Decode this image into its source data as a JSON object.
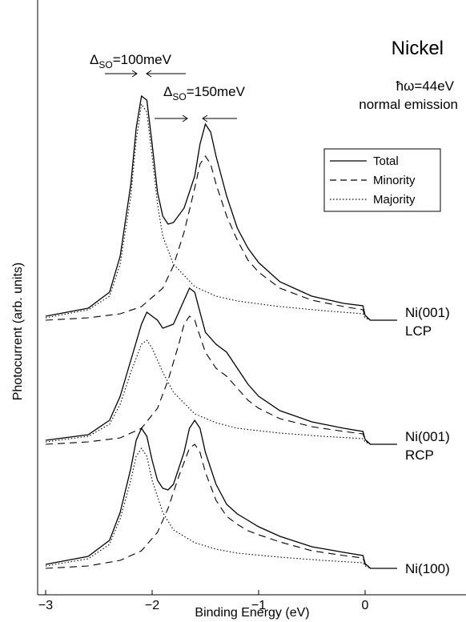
{
  "chart_data": {
    "type": "line",
    "title": "Nickel",
    "xlabel": "Binding Energy (eV)",
    "ylabel": "Photocurrent (arb. units)",
    "xlim": [
      -3,
      0.6
    ],
    "x_ticks": [
      "-3",
      "-2",
      "-1",
      "0"
    ],
    "y_ticks_shown": false,
    "grid": false,
    "legend_position": "top-right",
    "legend": [
      {
        "name": "Total",
        "style": "solid"
      },
      {
        "name": "Minority",
        "style": "dashed"
      },
      {
        "name": "Majority",
        "style": "dotted"
      }
    ],
    "annotations": {
      "photon_energy": "ħω=44eV",
      "emission": "normal emission",
      "so_splitting_left": {
        "symbol": "Δ",
        "sub": "SO",
        "value": "=100meV"
      },
      "so_splitting_right": {
        "symbol": "Δ",
        "sub": "SO",
        "value": "=150meV"
      }
    },
    "panels": [
      {
        "label_line1": "Ni(001)",
        "label_line2": "LCP",
        "baseline": 3.1,
        "series": [
          {
            "name": "Total",
            "style": "solid",
            "points": [
              [
                -3.0,
                0.05
              ],
              [
                -2.6,
                0.15
              ],
              [
                -2.4,
                0.35
              ],
              [
                -2.3,
                0.8
              ],
              [
                -2.2,
                1.7
              ],
              [
                -2.15,
                2.4
              ],
              [
                -2.1,
                2.8
              ],
              [
                -2.05,
                2.75
              ],
              [
                -2.0,
                2.2
              ],
              [
                -1.95,
                1.6
              ],
              [
                -1.9,
                1.3
              ],
              [
                -1.85,
                1.2
              ],
              [
                -1.8,
                1.22
              ],
              [
                -1.7,
                1.4
              ],
              [
                -1.6,
                1.8
              ],
              [
                -1.55,
                2.2
              ],
              [
                -1.5,
                2.45
              ],
              [
                -1.45,
                2.35
              ],
              [
                -1.4,
                2.05
              ],
              [
                -1.3,
                1.55
              ],
              [
                -1.2,
                1.15
              ],
              [
                -1.1,
                0.9
              ],
              [
                -1.0,
                0.72
              ],
              [
                -0.8,
                0.48
              ],
              [
                -0.5,
                0.3
              ],
              [
                -0.2,
                0.21
              ],
              [
                -0.02,
                0.18
              ],
              [
                0.0,
                0.06
              ],
              [
                0.05,
                0.0
              ],
              [
                0.1,
                0.0
              ],
              [
                0.3,
                0.0
              ]
            ]
          },
          {
            "name": "Minority",
            "style": "dashed",
            "points": [
              [
                -3.0,
                0.0
              ],
              [
                -2.6,
                0.03
              ],
              [
                -2.3,
                0.08
              ],
              [
                -2.1,
                0.17
              ],
              [
                -1.9,
                0.4
              ],
              [
                -1.8,
                0.68
              ],
              [
                -1.7,
                1.1
              ],
              [
                -1.6,
                1.65
              ],
              [
                -1.55,
                1.95
              ],
              [
                -1.5,
                2.05
              ],
              [
                -1.45,
                1.95
              ],
              [
                -1.4,
                1.7
              ],
              [
                -1.3,
                1.3
              ],
              [
                -1.2,
                1.0
              ],
              [
                -1.1,
                0.75
              ],
              [
                -1.0,
                0.6
              ],
              [
                -0.8,
                0.4
              ],
              [
                -0.5,
                0.25
              ],
              [
                -0.2,
                0.17
              ],
              [
                -0.02,
                0.13
              ],
              [
                0.0,
                0.05
              ],
              [
                0.05,
                0.0
              ],
              [
                0.3,
                0.0
              ]
            ]
          },
          {
            "name": "Majority",
            "style": "dotted",
            "points": [
              [
                -3.0,
                0.03
              ],
              [
                -2.6,
                0.13
              ],
              [
                -2.4,
                0.3
              ],
              [
                -2.3,
                0.7
              ],
              [
                -2.2,
                1.55
              ],
              [
                -2.15,
                2.25
              ],
              [
                -2.1,
                2.7
              ],
              [
                -2.05,
                2.6
              ],
              [
                -2.0,
                2.05
              ],
              [
                -1.95,
                1.45
              ],
              [
                -1.9,
                1.05
              ],
              [
                -1.8,
                0.7
              ],
              [
                -1.6,
                0.42
              ],
              [
                -1.4,
                0.3
              ],
              [
                -1.2,
                0.24
              ],
              [
                -0.8,
                0.17
              ],
              [
                -0.4,
                0.12
              ],
              [
                -0.02,
                0.08
              ],
              [
                0.0,
                0.03
              ],
              [
                0.05,
                0.0
              ],
              [
                0.3,
                0.0
              ]
            ]
          }
        ]
      },
      {
        "label_line1": "Ni(001)",
        "label_line2": "RCP",
        "baseline": 1.55,
        "series": [
          {
            "name": "Total",
            "style": "solid",
            "points": [
              [
                -3.0,
                0.05
              ],
              [
                -2.6,
                0.12
              ],
              [
                -2.4,
                0.3
              ],
              [
                -2.3,
                0.6
              ],
              [
                -2.2,
                1.05
              ],
              [
                -2.1,
                1.5
              ],
              [
                -2.05,
                1.65
              ],
              [
                -2.0,
                1.6
              ],
              [
                -1.95,
                1.55
              ],
              [
                -1.9,
                1.45
              ],
              [
                -1.8,
                1.5
              ],
              [
                -1.7,
                1.8
              ],
              [
                -1.65,
                1.95
              ],
              [
                -1.6,
                1.9
              ],
              [
                -1.55,
                1.65
              ],
              [
                -1.5,
                1.4
              ],
              [
                -1.4,
                1.25
              ],
              [
                -1.3,
                1.15
              ],
              [
                -1.2,
                0.95
              ],
              [
                -1.1,
                0.75
              ],
              [
                -1.0,
                0.6
              ],
              [
                -0.8,
                0.42
              ],
              [
                -0.5,
                0.28
              ],
              [
                -0.2,
                0.2
              ],
              [
                -0.02,
                0.16
              ],
              [
                0.0,
                0.06
              ],
              [
                0.05,
                0.0
              ],
              [
                0.3,
                0.0
              ]
            ]
          },
          {
            "name": "Minority",
            "style": "dashed",
            "points": [
              [
                -3.0,
                0.0
              ],
              [
                -2.6,
                0.03
              ],
              [
                -2.3,
                0.08
              ],
              [
                -2.1,
                0.2
              ],
              [
                -1.95,
                0.45
              ],
              [
                -1.85,
                0.8
              ],
              [
                -1.75,
                1.25
              ],
              [
                -1.7,
                1.5
              ],
              [
                -1.65,
                1.6
              ],
              [
                -1.6,
                1.55
              ],
              [
                -1.55,
                1.35
              ],
              [
                -1.5,
                1.15
              ],
              [
                -1.4,
                0.95
              ],
              [
                -1.3,
                0.85
              ],
              [
                -1.2,
                0.7
              ],
              [
                -1.1,
                0.55
              ],
              [
                -1.0,
                0.45
              ],
              [
                -0.8,
                0.32
              ],
              [
                -0.5,
                0.22
              ],
              [
                -0.2,
                0.16
              ],
              [
                -0.02,
                0.13
              ],
              [
                0.0,
                0.05
              ],
              [
                0.05,
                0.0
              ],
              [
                0.3,
                0.0
              ]
            ]
          },
          {
            "name": "Majority",
            "style": "dotted",
            "points": [
              [
                -3.0,
                0.03
              ],
              [
                -2.6,
                0.1
              ],
              [
                -2.4,
                0.25
              ],
              [
                -2.3,
                0.5
              ],
              [
                -2.2,
                0.9
              ],
              [
                -2.1,
                1.25
              ],
              [
                -2.05,
                1.3
              ],
              [
                -2.0,
                1.2
              ],
              [
                -1.9,
                0.9
              ],
              [
                -1.8,
                0.65
              ],
              [
                -1.6,
                0.38
              ],
              [
                -1.4,
                0.27
              ],
              [
                -1.2,
                0.2
              ],
              [
                -0.8,
                0.14
              ],
              [
                -0.4,
                0.1
              ],
              [
                -0.02,
                0.07
              ],
              [
                0.0,
                0.03
              ],
              [
                0.05,
                0.0
              ],
              [
                0.3,
                0.0
              ]
            ]
          }
        ]
      },
      {
        "label_line1": "Ni(100)",
        "label_line2": "",
        "baseline": 0.0,
        "series": [
          {
            "name": "Total",
            "style": "solid",
            "points": [
              [
                -3.0,
                0.05
              ],
              [
                -2.6,
                0.15
              ],
              [
                -2.4,
                0.35
              ],
              [
                -2.3,
                0.7
              ],
              [
                -2.2,
                1.25
              ],
              [
                -2.15,
                1.6
              ],
              [
                -2.1,
                1.75
              ],
              [
                -2.05,
                1.65
              ],
              [
                -2.0,
                1.35
              ],
              [
                -1.95,
                1.1
              ],
              [
                -1.9,
                1.0
              ],
              [
                -1.85,
                0.98
              ],
              [
                -1.8,
                1.05
              ],
              [
                -1.7,
                1.45
              ],
              [
                -1.65,
                1.75
              ],
              [
                -1.6,
                1.85
              ],
              [
                -1.55,
                1.75
              ],
              [
                -1.5,
                1.45
              ],
              [
                -1.4,
                1.05
              ],
              [
                -1.3,
                0.8
              ],
              [
                -1.2,
                0.68
              ],
              [
                -1.1,
                0.6
              ],
              [
                -1.0,
                0.52
              ],
              [
                -0.8,
                0.4
              ],
              [
                -0.5,
                0.27
              ],
              [
                -0.2,
                0.2
              ],
              [
                -0.02,
                0.16
              ],
              [
                0.0,
                0.06
              ],
              [
                0.05,
                0.0
              ],
              [
                0.3,
                0.0
              ]
            ]
          },
          {
            "name": "Minority",
            "style": "dashed",
            "points": [
              [
                -3.0,
                0.0
              ],
              [
                -2.6,
                0.03
              ],
              [
                -2.3,
                0.1
              ],
              [
                -2.1,
                0.22
              ],
              [
                -1.95,
                0.45
              ],
              [
                -1.85,
                0.75
              ],
              [
                -1.75,
                1.15
              ],
              [
                -1.65,
                1.5
              ],
              [
                -1.6,
                1.55
              ],
              [
                -1.55,
                1.45
              ],
              [
                -1.5,
                1.2
              ],
              [
                -1.4,
                0.85
              ],
              [
                -1.3,
                0.65
              ],
              [
                -1.2,
                0.55
              ],
              [
                -1.1,
                0.47
              ],
              [
                -1.0,
                0.42
              ],
              [
                -0.8,
                0.33
              ],
              [
                -0.5,
                0.22
              ],
              [
                -0.2,
                0.16
              ],
              [
                -0.02,
                0.13
              ],
              [
                0.0,
                0.05
              ],
              [
                0.05,
                0.0
              ],
              [
                0.3,
                0.0
              ]
            ]
          },
          {
            "name": "Majority",
            "style": "dotted",
            "points": [
              [
                -3.0,
                0.03
              ],
              [
                -2.6,
                0.12
              ],
              [
                -2.4,
                0.3
              ],
              [
                -2.3,
                0.62
              ],
              [
                -2.2,
                1.1
              ],
              [
                -2.15,
                1.4
              ],
              [
                -2.1,
                1.5
              ],
              [
                -2.05,
                1.4
              ],
              [
                -2.0,
                1.1
              ],
              [
                -1.9,
                0.7
              ],
              [
                -1.8,
                0.48
              ],
              [
                -1.6,
                0.32
              ],
              [
                -1.4,
                0.24
              ],
              [
                -1.2,
                0.19
              ],
              [
                -0.8,
                0.14
              ],
              [
                -0.4,
                0.1
              ],
              [
                -0.02,
                0.07
              ],
              [
                0.0,
                0.03
              ],
              [
                0.05,
                0.0
              ],
              [
                0.3,
                0.0
              ]
            ]
          }
        ]
      }
    ]
  }
}
